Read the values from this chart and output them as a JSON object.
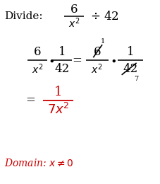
{
  "bg_color": "#ffffff",
  "black_color": "#000000",
  "red_color": "#cc0000",
  "figsize": [
    2.27,
    2.6
  ],
  "dpi": 100
}
